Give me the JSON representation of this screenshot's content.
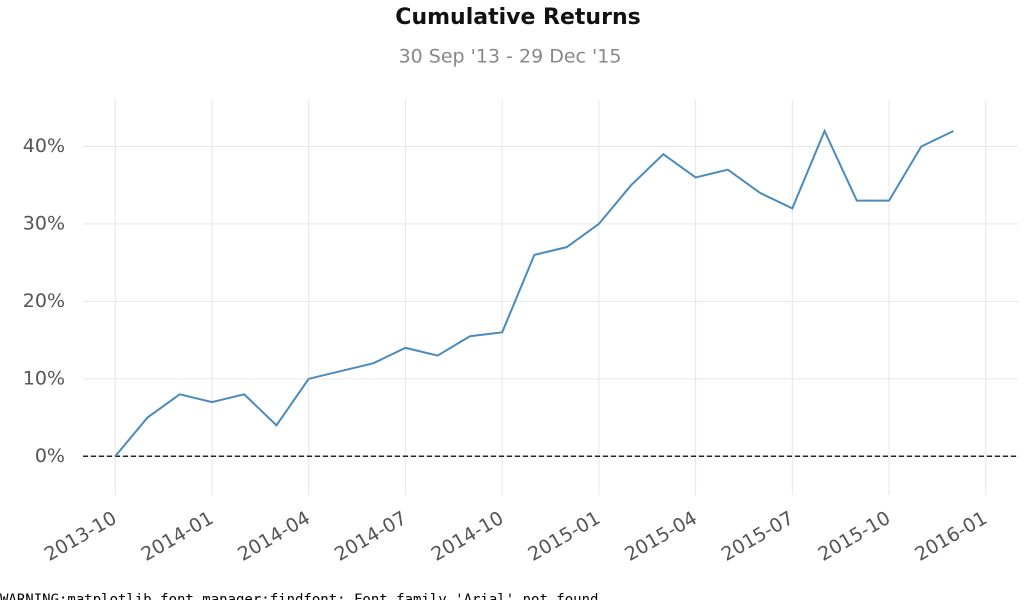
{
  "chart_data": {
    "type": "line",
    "title": "Cumulative Returns",
    "subtitle": "30 Sep '13 - 29 Dec '15",
    "x": [
      "2013-10",
      "2013-11",
      "2013-12",
      "2014-01",
      "2014-02",
      "2014-03",
      "2014-04",
      "2014-05",
      "2014-06",
      "2014-07",
      "2014-08",
      "2014-09",
      "2014-10",
      "2014-11",
      "2014-12",
      "2015-01",
      "2015-02",
      "2015-03",
      "2015-04",
      "2015-05",
      "2015-06",
      "2015-07",
      "2015-08",
      "2015-09",
      "2015-10",
      "2015-11",
      "2015-12"
    ],
    "series": [
      {
        "color": "#4a8bbf",
        "values": [
          0,
          5,
          8,
          7,
          8,
          4,
          10,
          11,
          12,
          14,
          13,
          15.5,
          16,
          26,
          27,
          30,
          35,
          39,
          36,
          37,
          34,
          32,
          42,
          33,
          33,
          40,
          42
        ]
      }
    ],
    "xlim": [
      "2013-09",
      "2016-02"
    ],
    "xticks": [
      "2013-10",
      "2014-01",
      "2014-04",
      "2014-07",
      "2014-10",
      "2015-01",
      "2015-04",
      "2015-07",
      "2015-10",
      "2016-01"
    ],
    "ylim": [
      -5,
      46
    ],
    "yticks": [
      {
        "value": 0,
        "label": "0%"
      },
      {
        "value": 10,
        "label": "10%"
      },
      {
        "value": 20,
        "label": "20%"
      },
      {
        "value": 30,
        "label": "30%"
      },
      {
        "value": 40,
        "label": "40%"
      }
    ],
    "reference_line": 0,
    "grid": true
  },
  "log_text": "WARNING:matplotlib.font_manager:findfont: Font family 'Arial' not found."
}
